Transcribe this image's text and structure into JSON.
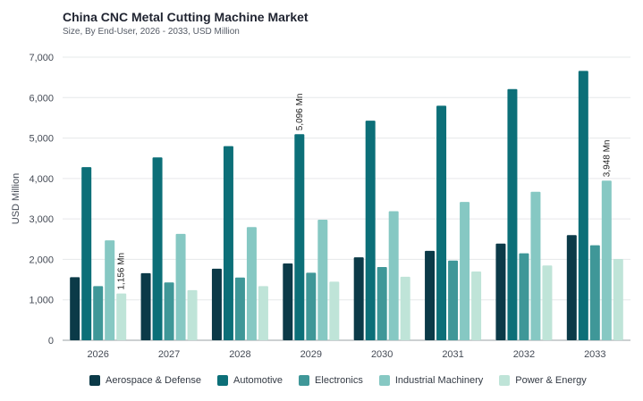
{
  "title": "China CNC Metal Cutting Machine Market",
  "subtitle": "Size, By End-User, 2026 - 2033, USD Million",
  "chart_data": {
    "type": "bar",
    "title": "China CNC Metal Cutting Machine Market",
    "subtitle": "Size, By End-User, 2026 - 2033, USD Million",
    "xlabel": "",
    "ylabel": "USD Million",
    "ylim": [
      0,
      7000
    ],
    "yticks": [
      "0",
      "1,000",
      "2,000",
      "3,000",
      "4,000",
      "5,000",
      "6,000",
      "7,000"
    ],
    "grid": true,
    "legend_position": "bottom",
    "categories": [
      "2026",
      "2027",
      "2028",
      "2029",
      "2030",
      "2031",
      "2032",
      "2033"
    ],
    "series": [
      {
        "name": "Aerospace & Defense",
        "color": "#0b3a48",
        "values": [
          1560,
          1660,
          1770,
          1900,
          2050,
          2210,
          2390,
          2600
        ]
      },
      {
        "name": "Automotive",
        "color": "#0c6f78",
        "values": [
          4280,
          4520,
          4800,
          5096,
          5430,
          5800,
          6210,
          6660
        ]
      },
      {
        "name": "Electronics",
        "color": "#3f9798",
        "values": [
          1340,
          1430,
          1550,
          1670,
          1810,
          1970,
          2150,
          2350
        ]
      },
      {
        "name": "Industrial Machinery",
        "color": "#86c8c3",
        "values": [
          2470,
          2630,
          2800,
          2980,
          3190,
          3420,
          3670,
          3948
        ]
      },
      {
        "name": "Power & Energy",
        "color": "#bfe4d8",
        "values": [
          1156,
          1240,
          1340,
          1450,
          1570,
          1700,
          1850,
          2010
        ]
      }
    ],
    "annotations": [
      {
        "text": "1,156 Mn",
        "category": "2026",
        "series": "Power & Energy"
      },
      {
        "text": "5,096 Mn",
        "category": "2029",
        "series": "Automotive"
      },
      {
        "text": "3,948 Mn",
        "category": "2033",
        "series": "Industrial Machinery"
      }
    ]
  }
}
